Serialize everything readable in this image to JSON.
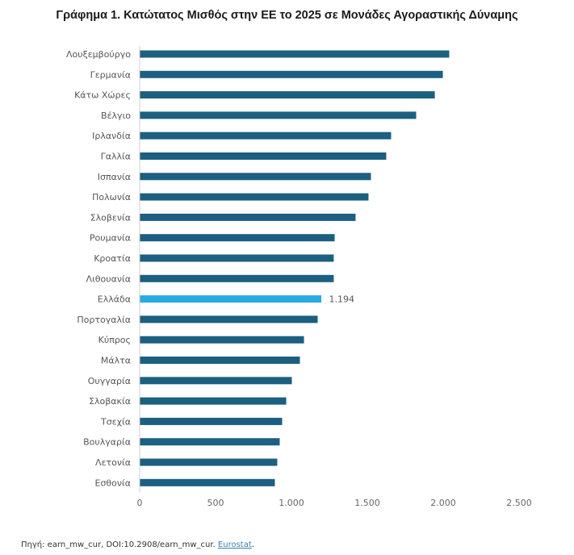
{
  "chart_data": {
    "type": "bar",
    "orientation": "horizontal",
    "title": "Γράφημα 1. Κατώτατος Μισθός στην ΕΕ το 2025 σε Μονάδες Αγοραστικής Δύναμης",
    "xlabel": "",
    "ylabel": "",
    "xlim": [
      0,
      2500
    ],
    "xticks": [
      0,
      500,
      1000,
      1500,
      2000,
      2500
    ],
    "xtick_labels": [
      "0",
      "500",
      "1.000",
      "1.500",
      "2.000",
      "2.500"
    ],
    "grid": false,
    "categories": [
      "Λουξεμβούργο",
      "Γερμανία",
      "Κάτω Χώρες",
      "Βέλγιο",
      "Ιρλανδία",
      "Γαλλία",
      "Ισπανία",
      "Πολωνία",
      "Σλοβενία",
      "Ρουμανία",
      "Κροατία",
      "Λιθουανία",
      "Ελλάδα",
      "Πορτογαλία",
      "Κύπρος",
      "Μάλτα",
      "Ουγγαρία",
      "Σλοβακία",
      "Τσεχία",
      "Βουλγαρία",
      "Λετονία",
      "Εσθονία"
    ],
    "values": [
      2037,
      1995,
      1942,
      1819,
      1654,
      1622,
      1521,
      1505,
      1420,
      1282,
      1276,
      1276,
      1194,
      1170,
      1080,
      1053,
      1000,
      963,
      936,
      920,
      904,
      888
    ],
    "highlight": {
      "category": "Ελλάδα",
      "label": "1.194"
    },
    "colors": {
      "bar": "#1c5f80",
      "highlight": "#29aae1",
      "axis": "#d0d0d0"
    }
  },
  "source": {
    "prefix": "Πηγή: earn_mw_cur, DOI:10.2908/earn_mw_cur. ",
    "link_text": "Eurostat",
    "suffix": "."
  }
}
